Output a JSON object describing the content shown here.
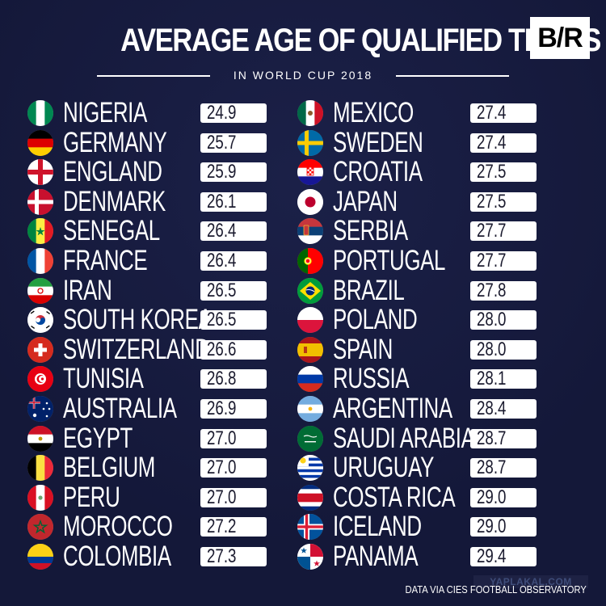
{
  "header": {
    "title": "AVERAGE AGE OF QUALIFIED TEAMS",
    "subtitle": "IN WORLD CUP 2018",
    "logo": "B/R"
  },
  "footer": {
    "source": "DATA VIA CIES FOOTBALL OBSERVATORY",
    "watermark": "YAPLAKAL.COM"
  },
  "colors": {
    "background": "#141839",
    "value_box": "#ffffff",
    "text": "#ffffff"
  },
  "chart_data": {
    "type": "table",
    "title": "AVERAGE AGE OF QUALIFIED TEAMS",
    "subtitle": "IN WORLD CUP 2018",
    "columns": [
      [
        {
          "team": "NIGERIA",
          "value": "24.9",
          "flag": "nigeria-flag-icon"
        },
        {
          "team": "GERMANY",
          "value": "25.7",
          "flag": "germany-flag-icon"
        },
        {
          "team": "ENGLAND",
          "value": "25.9",
          "flag": "england-flag-icon"
        },
        {
          "team": "DENMARK",
          "value": "26.1",
          "flag": "denmark-flag-icon"
        },
        {
          "team": "SENEGAL",
          "value": "26.4",
          "flag": "senegal-flag-icon"
        },
        {
          "team": "FRANCE",
          "value": "26.4",
          "flag": "france-flag-icon"
        },
        {
          "team": "IRAN",
          "value": "26.5",
          "flag": "iran-flag-icon"
        },
        {
          "team": "SOUTH KOREA",
          "value": "26.5",
          "flag": "south-korea-flag-icon"
        },
        {
          "team": "SWITZERLAND",
          "value": "26.6",
          "flag": "switzerland-flag-icon"
        },
        {
          "team": "TUNISIA",
          "value": "26.8",
          "flag": "tunisia-flag-icon"
        },
        {
          "team": "AUSTRALIA",
          "value": "26.9",
          "flag": "australia-flag-icon"
        },
        {
          "team": "EGYPT",
          "value": "27.0",
          "flag": "egypt-flag-icon"
        },
        {
          "team": "BELGIUM",
          "value": "27.0",
          "flag": "belgium-flag-icon"
        },
        {
          "team": "PERU",
          "value": "27.0",
          "flag": "peru-flag-icon"
        },
        {
          "team": "MOROCCO",
          "value": "27.2",
          "flag": "morocco-flag-icon"
        },
        {
          "team": "COLOMBIA",
          "value": "27.3",
          "flag": "colombia-flag-icon"
        }
      ],
      [
        {
          "team": "MEXICO",
          "value": "27.4",
          "flag": "mexico-flag-icon"
        },
        {
          "team": "SWEDEN",
          "value": "27.4",
          "flag": "sweden-flag-icon"
        },
        {
          "team": "CROATIA",
          "value": "27.5",
          "flag": "croatia-flag-icon"
        },
        {
          "team": "JAPAN",
          "value": "27.5",
          "flag": "japan-flag-icon"
        },
        {
          "team": "SERBIA",
          "value": "27.7",
          "flag": "serbia-flag-icon"
        },
        {
          "team": "PORTUGAL",
          "value": "27.7",
          "flag": "portugal-flag-icon"
        },
        {
          "team": "BRAZIL",
          "value": "27.8",
          "flag": "brazil-flag-icon"
        },
        {
          "team": "POLAND",
          "value": "28.0",
          "flag": "poland-flag-icon"
        },
        {
          "team": "SPAIN",
          "value": "28.0",
          "flag": "spain-flag-icon"
        },
        {
          "team": "RUSSIA",
          "value": "28.1",
          "flag": "russia-flag-icon"
        },
        {
          "team": "ARGENTINA",
          "value": "28.4",
          "flag": "argentina-flag-icon"
        },
        {
          "team": "SAUDI ARABIA",
          "value": "28.7",
          "flag": "saudi-arabia-flag-icon"
        },
        {
          "team": "URUGUAY",
          "value": "28.7",
          "flag": "uruguay-flag-icon"
        },
        {
          "team": "COSTA RICA",
          "value": "29.0",
          "flag": "costa-rica-flag-icon"
        },
        {
          "team": "ICELAND",
          "value": "29.0",
          "flag": "iceland-flag-icon"
        },
        {
          "team": "PANAMA",
          "value": "29.4",
          "flag": "panama-flag-icon"
        }
      ]
    ]
  }
}
